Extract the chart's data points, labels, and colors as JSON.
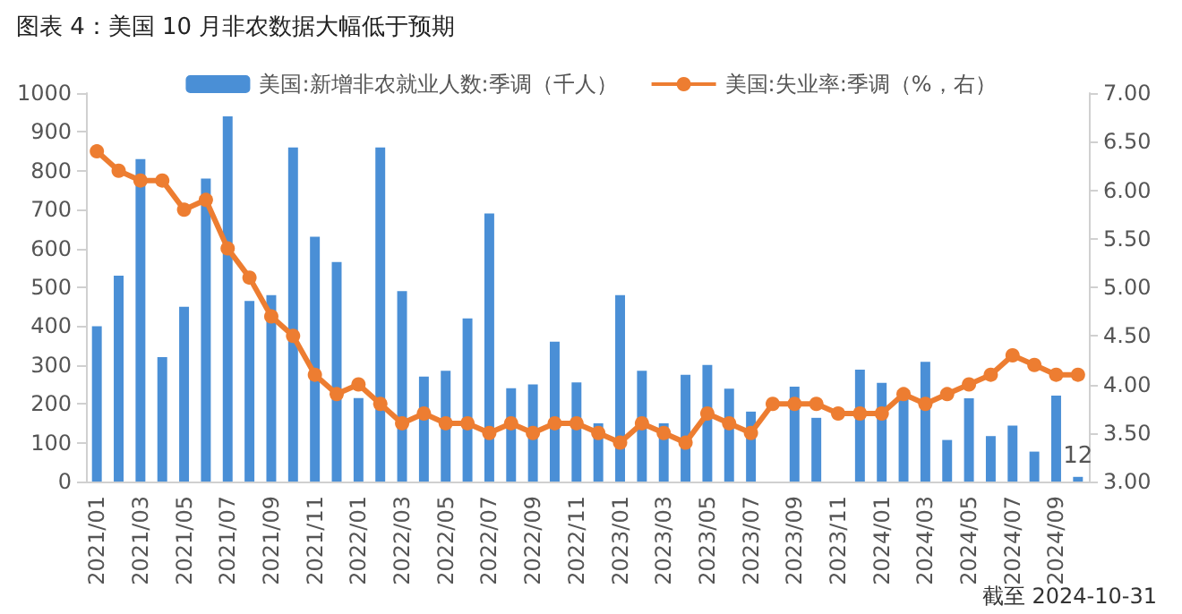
{
  "chart_data": {
    "type": "bar",
    "title": "图表 4：美国 10 月非农数据大幅低于预期",
    "categories": [
      "2021/01",
      null,
      "2021/03",
      null,
      "2021/05",
      null,
      "2021/07",
      null,
      "2021/09",
      null,
      "2021/11",
      null,
      "2022/01",
      null,
      "2022/03",
      null,
      "2022/05",
      null,
      "2022/07",
      null,
      "2022/09",
      null,
      "2022/11",
      null,
      "2023/01",
      null,
      "2023/03",
      null,
      "2023/05",
      null,
      "2023/07",
      null,
      "2023/09",
      null,
      "2023/11",
      null,
      "2024/01",
      null,
      "2024/03",
      null,
      "2024/05",
      null,
      "2024/07",
      null,
      "2024/09",
      null
    ],
    "series": [
      {
        "name": "美国:新增非农就业人数:季调（千人）",
        "color": "#4a8fd6",
        "values": [
          400,
          530,
          830,
          320,
          450,
          780,
          940,
          465,
          480,
          860,
          630,
          565,
          215,
          860,
          490,
          270,
          285,
          420,
          690,
          240,
          250,
          360,
          255,
          150,
          480,
          285,
          150,
          275,
          300,
          239,
          180,
          null,
          244,
          164,
          null,
          288,
          254,
          214,
          308,
          107,
          214,
          117,
          144,
          77,
          221,
          12
        ],
        "value_labels": [
          null,
          null,
          null,
          null,
          null,
          null,
          null,
          null,
          null,
          null,
          null,
          null,
          null,
          null,
          null,
          null,
          null,
          null,
          null,
          null,
          null,
          null,
          null,
          null,
          null,
          null,
          null,
          null,
          null,
          null,
          null,
          null,
          null,
          null,
          null,
          null,
          null,
          null,
          null,
          null,
          null,
          null,
          null,
          null,
          null,
          "12"
        ]
      },
      {
        "name": "美国:失业率:季调（%，右）",
        "type": "line",
        "axis": "y2",
        "color": "#ed7d31",
        "marker": "circle",
        "values": [
          6.4,
          6.2,
          6.1,
          6.1,
          5.8,
          5.9,
          5.4,
          5.1,
          4.7,
          4.5,
          4.1,
          3.9,
          4.0,
          3.8,
          3.6,
          3.7,
          3.6,
          3.6,
          3.5,
          3.6,
          3.5,
          3.6,
          3.6,
          3.5,
          3.4,
          3.6,
          3.5,
          3.4,
          3.7,
          3.6,
          3.5,
          3.8,
          3.8,
          3.8,
          3.7,
          3.7,
          3.7,
          3.9,
          3.8,
          3.9,
          4.0,
          4.1,
          4.3,
          4.2,
          4.1,
          4.1
        ]
      }
    ],
    "ylim": [
      0,
      1000
    ],
    "yticks": [
      0,
      100,
      200,
      300,
      400,
      500,
      600,
      700,
      800,
      900,
      1000
    ],
    "y2lim": [
      3,
      7
    ],
    "y2ticks": [
      {
        "value": 3,
        "label": "3.00"
      },
      {
        "value": 3.5,
        "label": "3.50"
      },
      {
        "value": 4,
        "label": "4.00"
      },
      {
        "value": 4.5,
        "label": "4.50"
      },
      {
        "value": 5,
        "label": "5.00"
      },
      {
        "value": 5.5,
        "label": "5.50"
      },
      {
        "value": 6,
        "label": "6.00"
      },
      {
        "value": 6.5,
        "label": "6.50"
      },
      {
        "value": 7,
        "label": "7.00"
      }
    ],
    "grid": false,
    "legend": "top",
    "annotations": [
      "截至 2024-10-31"
    ]
  }
}
